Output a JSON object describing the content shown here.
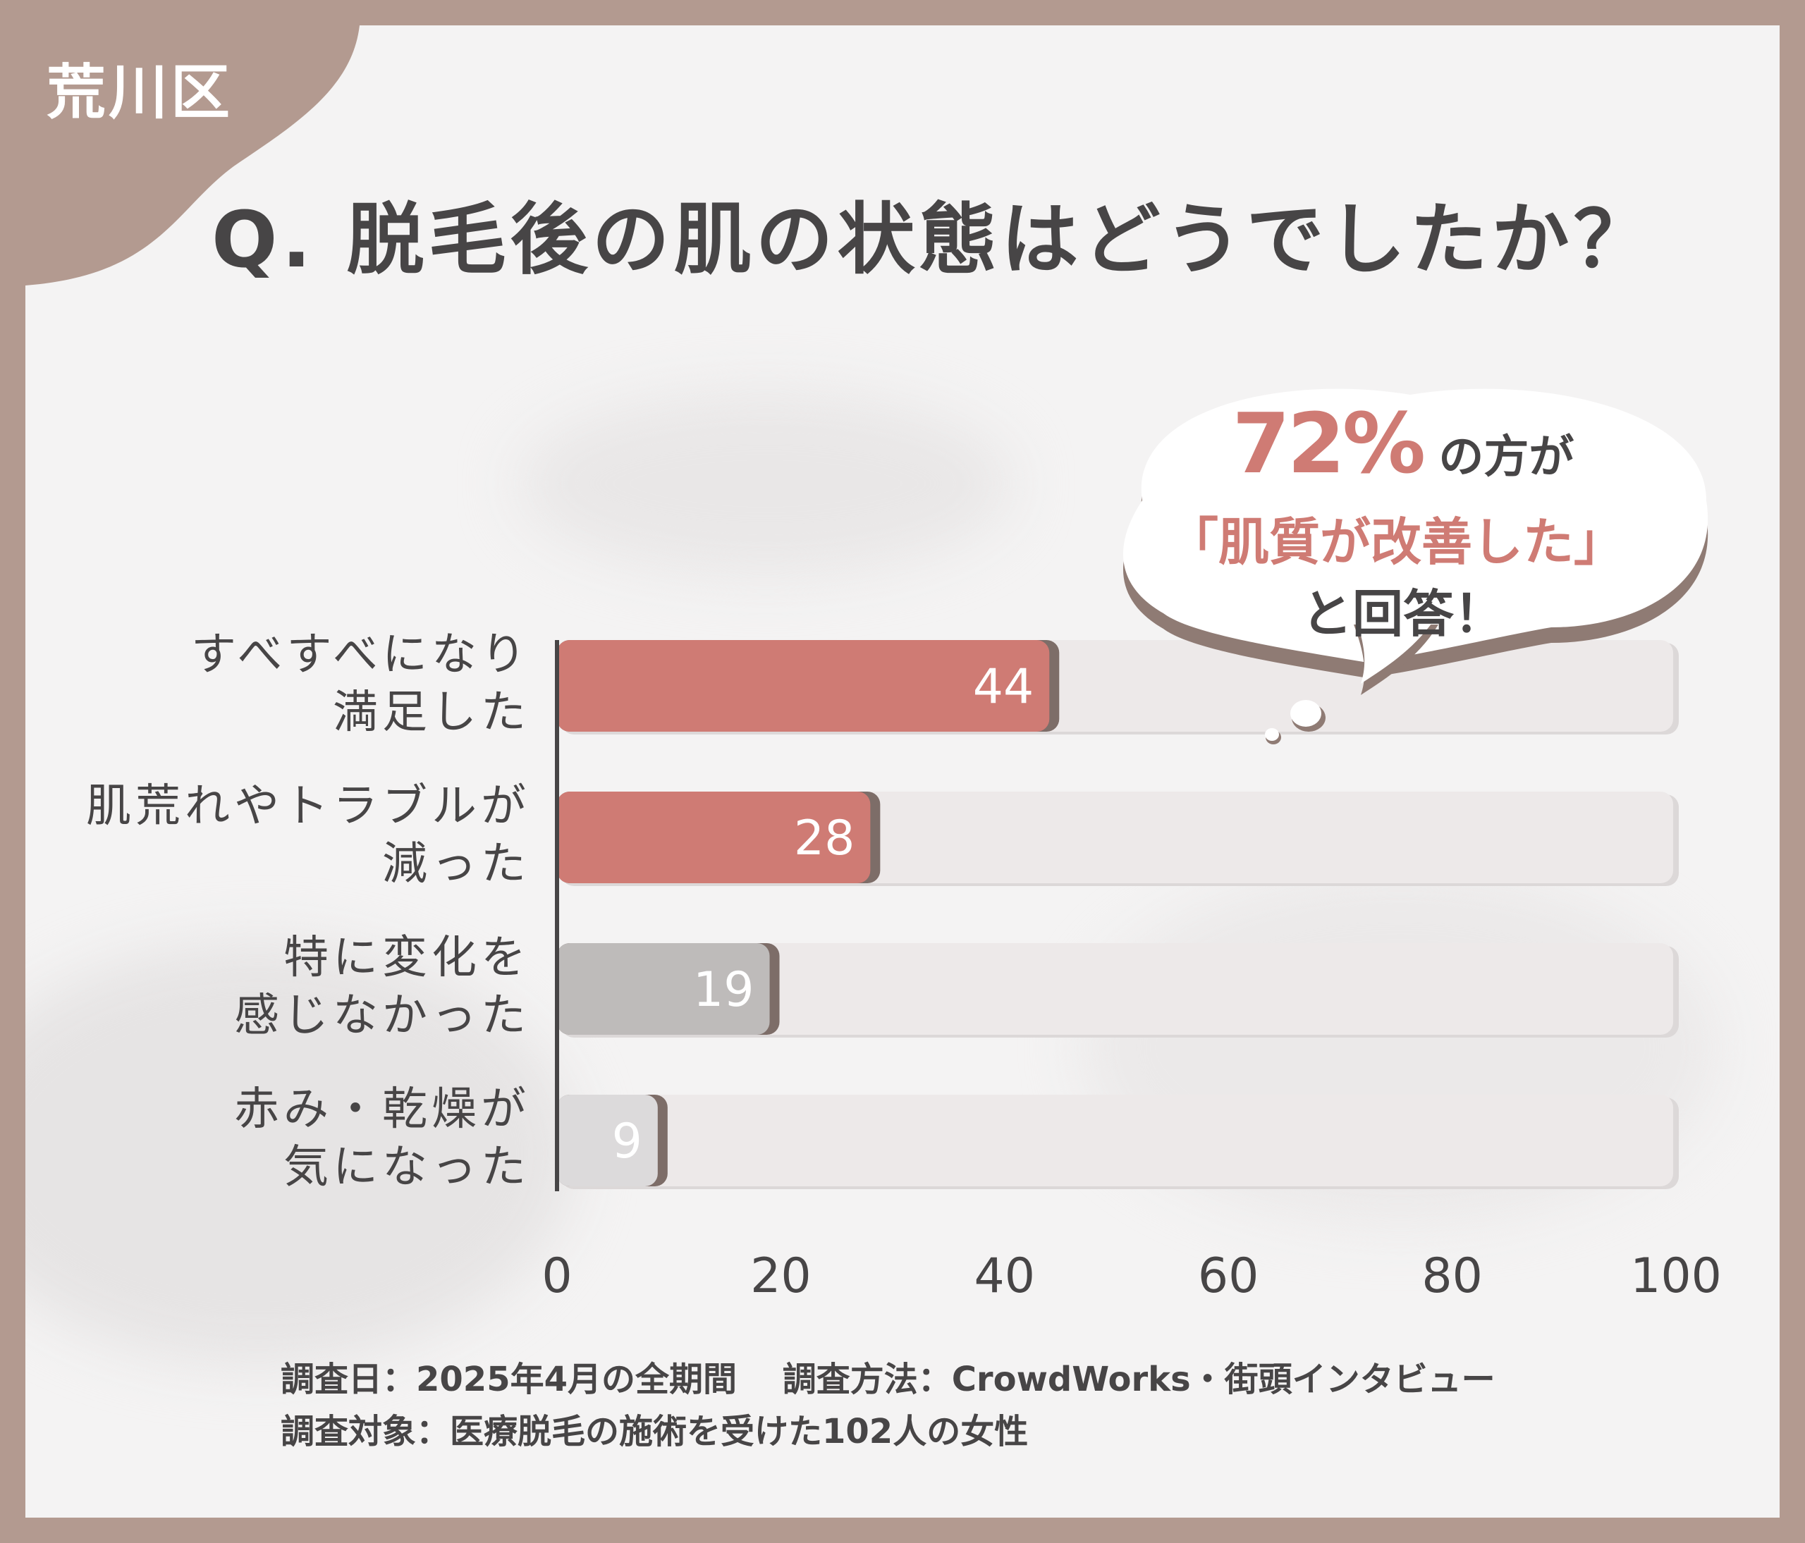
{
  "header": {
    "region": "荒川区",
    "question": "Q. 脱毛後の肌の状態はどうでしたか？"
  },
  "callout": {
    "percent": "72%",
    "line1_suffix": "の方が",
    "line2": "「肌質が改善した」",
    "line3": "と回答！"
  },
  "chart_data": {
    "type": "bar",
    "orientation": "horizontal",
    "categories": [
      [
        "すべすべになり",
        "満足した"
      ],
      [
        "肌荒れやトラブルが",
        "減った"
      ],
      [
        "特に変化を",
        "感じなかった"
      ],
      [
        "赤み・乾燥が",
        "気になった"
      ]
    ],
    "values": [
      44,
      28,
      19,
      9
    ],
    "value_labels": [
      "44",
      "28",
      "19",
      "9"
    ],
    "xlim": [
      0,
      100
    ],
    "x_ticks": [
      "0",
      "20",
      "40",
      "60",
      "80",
      "100"
    ],
    "bar_colors": [
      "#cf7b74",
      "#cf7b74",
      "#bebbba",
      "#dcdadb"
    ],
    "track_color": "#ede9e9",
    "grid": false
  },
  "footer": {
    "line1": "調査日：2025年4月の全期間　 調査方法：CrowdWorks・街頭インタビュー",
    "line2": "調査対象：医療脱毛の施術を受けた102人の女性"
  }
}
